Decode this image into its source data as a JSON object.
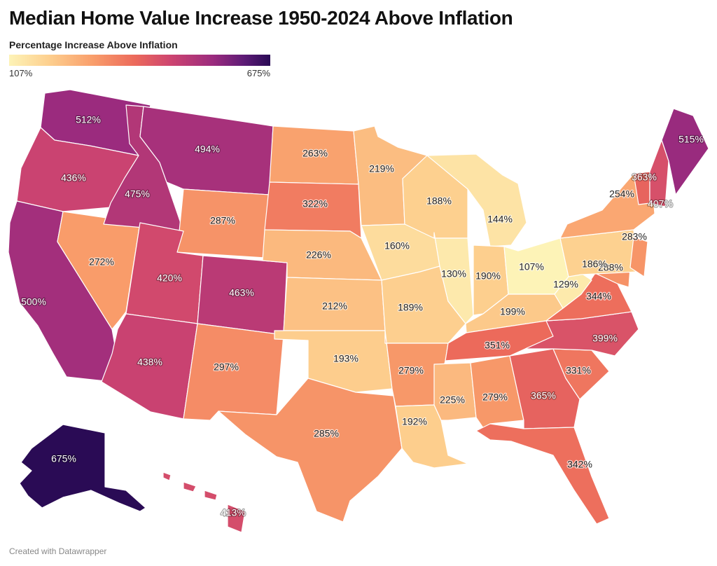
{
  "title": "Median Home Value Increase 1950-2024 Above Inflation",
  "legend": {
    "title": "Percentage Increase Above Inflation",
    "min_label": "107%",
    "max_label": "675%",
    "min_value": 107,
    "max_value": 675
  },
  "credit": "Created with Datawrapper",
  "colors": {
    "scale": [
      "#fdf3b7",
      "#fdd08f",
      "#f99e6b",
      "#ec6a5b",
      "#cd4470",
      "#9b2b7e",
      "#5d1b76",
      "#2a0b55"
    ],
    "border": "#ffffff"
  },
  "states": [
    {
      "abbr": "AK",
      "label": "675%",
      "value": 675
    },
    {
      "abbr": "ME",
      "label": "515%",
      "value": 515
    },
    {
      "abbr": "WA",
      "label": "512%",
      "value": 512
    },
    {
      "abbr": "CA",
      "label": "500%",
      "value": 500
    },
    {
      "abbr": "MT",
      "label": "494%",
      "value": 494
    },
    {
      "abbr": "ID",
      "label": "475%",
      "value": 475
    },
    {
      "abbr": "CO",
      "label": "463%",
      "value": 463
    },
    {
      "abbr": "AZ",
      "label": "438%",
      "value": 438
    },
    {
      "abbr": "OR",
      "label": "436%",
      "value": 436
    },
    {
      "abbr": "UT",
      "label": "420%",
      "value": 420
    },
    {
      "abbr": "HI",
      "label": "413%",
      "value": 413
    },
    {
      "abbr": "NH",
      "label": "407%",
      "value": 407
    },
    {
      "abbr": "NC",
      "label": "399%",
      "value": 399
    },
    {
      "abbr": "GA",
      "label": "365%",
      "value": 365
    },
    {
      "abbr": "VT",
      "label": "363%",
      "value": 363
    },
    {
      "abbr": "TN",
      "label": "351%",
      "value": 351
    },
    {
      "abbr": "VA",
      "label": "344%",
      "value": 344
    },
    {
      "abbr": "FL",
      "label": "342%",
      "value": 342
    },
    {
      "abbr": "SC",
      "label": "331%",
      "value": 331
    },
    {
      "abbr": "SD",
      "label": "322%",
      "value": 322
    },
    {
      "abbr": "NM",
      "label": "297%",
      "value": 297
    },
    {
      "abbr": "MD",
      "label": "288%",
      "value": 288
    },
    {
      "abbr": "WY",
      "label": "287%",
      "value": 287
    },
    {
      "abbr": "TX",
      "label": "285%",
      "value": 285
    },
    {
      "abbr": "NJ",
      "label": "283%",
      "value": 283
    },
    {
      "abbr": "AR",
      "label": "279%",
      "value": 279
    },
    {
      "abbr": "AL",
      "label": "279%",
      "value": 279
    },
    {
      "abbr": "NV",
      "label": "272%",
      "value": 272
    },
    {
      "abbr": "ND",
      "label": "263%",
      "value": 263
    },
    {
      "abbr": "NY",
      "label": "254%",
      "value": 254
    },
    {
      "abbr": "NE",
      "label": "226%",
      "value": 226
    },
    {
      "abbr": "MS",
      "label": "225%",
      "value": 225
    },
    {
      "abbr": "MN",
      "label": "219%",
      "value": 219
    },
    {
      "abbr": "KS",
      "label": "212%",
      "value": 212
    },
    {
      "abbr": "KY",
      "label": "199%",
      "value": 199
    },
    {
      "abbr": "OK",
      "label": "193%",
      "value": 193
    },
    {
      "abbr": "LA",
      "label": "192%",
      "value": 192
    },
    {
      "abbr": "IN",
      "label": "190%",
      "value": 190
    },
    {
      "abbr": "MO",
      "label": "189%",
      "value": 189
    },
    {
      "abbr": "WI",
      "label": "188%",
      "value": 188
    },
    {
      "abbr": "PA",
      "label": "186%",
      "value": 186
    },
    {
      "abbr": "IA",
      "label": "160%",
      "value": 160
    },
    {
      "abbr": "MI",
      "label": "144%",
      "value": 144
    },
    {
      "abbr": "IL",
      "label": "130%",
      "value": 130
    },
    {
      "abbr": "WV",
      "label": "129%",
      "value": 129
    },
    {
      "abbr": "OH",
      "label": "107%",
      "value": 107
    }
  ]
}
